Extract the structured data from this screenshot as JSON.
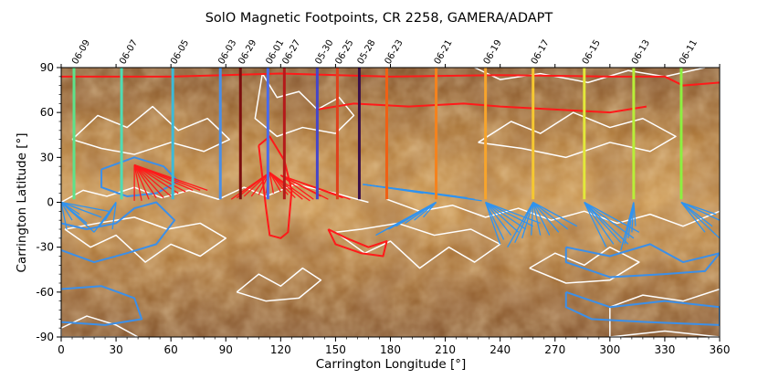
{
  "chart_data": {
    "type": "scatter",
    "title": "SolO Magnetic Footpoints, CR 2258, GAMERA/ADAPT",
    "xlabel": "Carrington Longitude [°]",
    "ylabel": "Carrington Latitude [°]",
    "xlim": [
      0,
      360
    ],
    "ylim": [
      -90,
      90
    ],
    "x_ticks": [
      0,
      30,
      60,
      90,
      120,
      150,
      180,
      210,
      240,
      270,
      300,
      330,
      360
    ],
    "y_ticks": [
      -90,
      -60,
      -30,
      0,
      30,
      60,
      90
    ],
    "colors": {
      "positive_polarity": "#ff1a1a",
      "negative_polarity": "#2f93f0",
      "neutral_line": "#ffffff"
    },
    "date_markers": [
      {
        "label": "06-09",
        "lon": 7,
        "color": "#5ee28a"
      },
      {
        "label": "06-07",
        "lon": 33,
        "color": "#4fdcb4"
      },
      {
        "label": "06-05",
        "lon": 61,
        "color": "#3cbad8"
      },
      {
        "label": "06-03",
        "lon": 87,
        "color": "#4a8ee6"
      },
      {
        "label": "06-29",
        "lon": 98,
        "color": "#7a0e0e"
      },
      {
        "label": "06-01",
        "lon": 113,
        "color": "#4a6bea"
      },
      {
        "label": "06-27",
        "lon": 122,
        "color": "#b51a1a"
      },
      {
        "label": "05-30",
        "lon": 140,
        "color": "#4646c8"
      },
      {
        "label": "06-25",
        "lon": 151,
        "color": "#e0401c"
      },
      {
        "label": "05-28",
        "lon": 163,
        "color": "#3a1048"
      },
      {
        "label": "06-23",
        "lon": 178,
        "color": "#f06014"
      },
      {
        "label": "06-21",
        "lon": 205,
        "color": "#f5821c"
      },
      {
        "label": "06-19",
        "lon": 232,
        "color": "#f8a42a"
      },
      {
        "label": "06-17",
        "lon": 258,
        "color": "#f6c830"
      },
      {
        "label": "06-15",
        "lon": 286,
        "color": "#e2e83a"
      },
      {
        "label": "06-13",
        "lon": 313,
        "color": "#b8ee38"
      },
      {
        "label": "06-11",
        "lon": 339,
        "color": "#8cf040"
      }
    ],
    "footpoint_fans": [
      {
        "color": "#2f93f0",
        "start": [
          0,
          0
        ],
        "ends": [
          [
            0,
            -24
          ],
          [
            3,
            -18
          ],
          [
            6,
            -12
          ],
          [
            10,
            -8
          ],
          [
            14,
            -14
          ],
          [
            18,
            -20
          ],
          [
            22,
            -10
          ],
          [
            26,
            -6
          ]
        ]
      },
      {
        "color": "#2f93f0",
        "start": [
          30,
          0
        ],
        "ends": [
          [
            18,
            -20
          ],
          [
            21,
            -16
          ],
          [
            24,
            -12
          ],
          [
            26,
            -8
          ],
          [
            28,
            -18
          ]
        ]
      },
      {
        "color": "#ff1a1a",
        "start": [
          40,
          25
        ],
        "ends": [
          [
            40,
            1
          ],
          [
            44,
            1
          ],
          [
            48,
            2
          ],
          [
            52,
            3
          ],
          [
            56,
            3
          ],
          [
            60,
            4
          ],
          [
            64,
            6
          ],
          [
            68,
            7
          ],
          [
            72,
            8
          ],
          [
            76,
            8
          ],
          [
            80,
            8
          ]
        ]
      },
      {
        "color": "#ff1a1a",
        "start": [
          114,
          20
        ],
        "ends": [
          [
            93,
            2
          ],
          [
            96,
            3
          ],
          [
            100,
            4
          ],
          [
            104,
            4
          ],
          [
            108,
            5
          ],
          [
            112,
            6
          ],
          [
            116,
            6
          ],
          [
            120,
            7
          ],
          [
            124,
            5
          ],
          [
            128,
            3
          ],
          [
            132,
            2
          ],
          [
            136,
            1
          ]
        ]
      },
      {
        "color": "#ff1a1a",
        "start": [
          120,
          18
        ],
        "ends": [
          [
            138,
            2
          ],
          [
            142,
            4
          ],
          [
            146,
            2
          ],
          [
            150,
            5
          ],
          [
            154,
            3
          ],
          [
            158,
            2
          ]
        ]
      },
      {
        "color": "#2f93f0",
        "start": [
          165,
          12
        ],
        "ends": [
          [
            230,
            1
          ],
          [
            226,
            2
          ],
          [
            222,
            3
          ],
          [
            216,
            4
          ],
          [
            208,
            5
          ],
          [
            198,
            6
          ]
        ]
      },
      {
        "color": "#2f93f0",
        "start": [
          205,
          0
        ],
        "ends": [
          [
            172,
            -22
          ],
          [
            175,
            -20
          ],
          [
            179,
            -18
          ],
          [
            183,
            -16
          ],
          [
            188,
            -14
          ],
          [
            193,
            -12
          ],
          [
            198,
            -10
          ]
        ]
      },
      {
        "color": "#2f93f0",
        "start": [
          232,
          0
        ],
        "ends": [
          [
            240,
            -28
          ],
          [
            242,
            -25
          ],
          [
            246,
            -22
          ],
          [
            250,
            -20
          ],
          [
            254,
            -18
          ],
          [
            258,
            -16
          ],
          [
            262,
            -14
          ]
        ]
      },
      {
        "color": "#2f93f0",
        "start": [
          258,
          0
        ],
        "ends": [
          [
            244,
            -30
          ],
          [
            248,
            -27
          ],
          [
            252,
            -24
          ],
          [
            257,
            -22
          ],
          [
            262,
            -22
          ],
          [
            267,
            -22
          ],
          [
            272,
            -20
          ],
          [
            277,
            -18
          ],
          [
            282,
            -16
          ]
        ]
      },
      {
        "color": "#2f93f0",
        "start": [
          286,
          0
        ],
        "ends": [
          [
            298,
            -30
          ],
          [
            302,
            -28
          ],
          [
            306,
            -27
          ],
          [
            310,
            -28
          ],
          [
            313,
            -24
          ],
          [
            316,
            -20
          ]
        ]
      },
      {
        "color": "#2f93f0",
        "start": [
          313,
          0
        ],
        "ends": [
          [
            306,
            -32
          ],
          [
            308,
            -28
          ],
          [
            310,
            -24
          ],
          [
            312,
            -20
          ],
          [
            314,
            -16
          ]
        ]
      },
      {
        "color": "#2f93f0",
        "start": [
          339,
          0
        ],
        "ends": [
          [
            352,
            -20
          ],
          [
            356,
            -16
          ],
          [
            360,
            -12
          ],
          [
            360,
            -24
          ],
          [
            358,
            -8
          ]
        ]
      }
    ]
  }
}
